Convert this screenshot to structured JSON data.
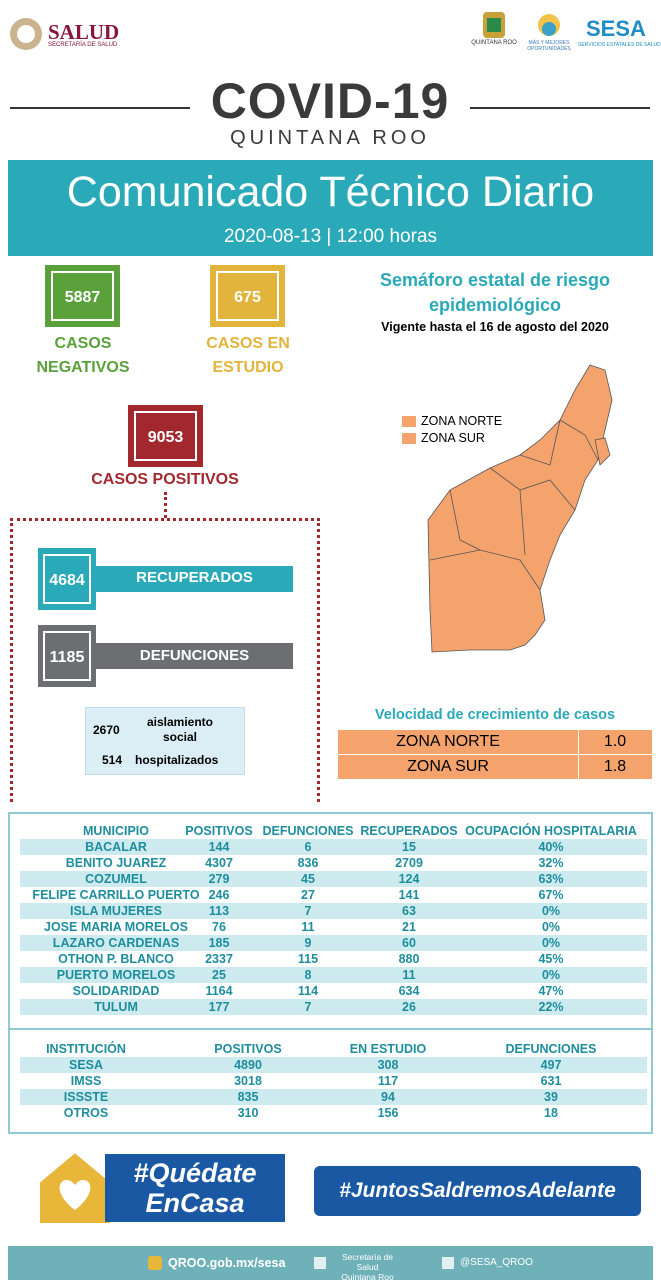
{
  "header": {
    "salud": "SALUD",
    "salud_sub": "SECRETARÍA DE SALUD",
    "qroo": "QUINTANA ROO",
    "mas": "MÁS Y MEJORES OPORTUNIDADES",
    "sesa": "SESA",
    "sesa_sub": "SERVICIOS ESTATALES DE SALUD"
  },
  "title": {
    "main": "COVID-19",
    "sub": "QUINTANA ROO"
  },
  "banner": {
    "title": "Comunicado Técnico Diario",
    "date": "2020-08-13 | 12:00 horas"
  },
  "stats": {
    "negativos": {
      "value": 5887,
      "label1": "CASOS",
      "label2": "NEGATIVOS"
    },
    "estudio": {
      "value": 675,
      "label1": "CASOS EN",
      "label2": "ESTUDIO"
    },
    "positivos": {
      "value": 9053,
      "label": "CASOS POSITIVOS"
    },
    "recuperados": {
      "value": 4684,
      "label": "RECUPERADOS"
    },
    "defunciones": {
      "value": 1185,
      "label": "DEFUNCIONES"
    },
    "aislamiento": {
      "value": 2670,
      "label1": "aislamiento",
      "label2": "social"
    },
    "hospitalizados": {
      "value": 514,
      "label": "hospitalizados"
    }
  },
  "semaforo": {
    "title1": "Semáforo estatal de riesgo",
    "title2": "epidemiológico",
    "vigente": "Vigente hasta el 16 de agosto del 2020",
    "legend": [
      "ZONA NORTE",
      "ZONA SUR"
    ]
  },
  "velocidad": {
    "title": "Velocidad de crecimiento de casos",
    "rows": [
      [
        "ZONA NORTE",
        "1.0"
      ],
      [
        "ZONA SUR",
        "1.8"
      ]
    ]
  },
  "municipios": {
    "header": [
      "MUNICIPIO",
      "POSITIVOS",
      "DEFUNCIONES",
      "RECUPERADOS",
      "OCUPACIÓN HOSPITALARIA"
    ],
    "rows": [
      [
        "BACALAR",
        144,
        6,
        15,
        "40%"
      ],
      [
        "BENITO JUAREZ",
        4307,
        836,
        2709,
        "32%"
      ],
      [
        "COZUMEL",
        279,
        45,
        124,
        "63%"
      ],
      [
        "FELIPE CARRILLO PUERTO",
        246,
        27,
        141,
        "67%"
      ],
      [
        "ISLA MUJERES",
        113,
        7,
        63,
        "0%"
      ],
      [
        "JOSE MARIA MORELOS",
        76,
        11,
        21,
        "0%"
      ],
      [
        "LAZARO CARDENAS",
        185,
        9,
        60,
        "0%"
      ],
      [
        "OTHON P. BLANCO",
        2337,
        115,
        880,
        "45%"
      ],
      [
        "PUERTO MORELOS",
        25,
        8,
        11,
        "0%"
      ],
      [
        "SOLIDARIDAD",
        1164,
        114,
        634,
        "47%"
      ],
      [
        "TULUM",
        177,
        7,
        26,
        "22%"
      ]
    ]
  },
  "instituciones": {
    "header": [
      "INSTITUCIÓN",
      "POSITIVOS",
      "EN ESTUDIO",
      "DEFUNCIONES"
    ],
    "rows": [
      [
        "SESA",
        4890,
        308,
        497
      ],
      [
        "IMSS",
        3018,
        117,
        631
      ],
      [
        "ISSSTE",
        835,
        94,
        39
      ],
      [
        "OTROS",
        310,
        156,
        18
      ]
    ]
  },
  "footer": {
    "quedate1": "#Quédate",
    "quedate2": "EnCasa",
    "juntos": "#JuntosSaldremosAdelante",
    "web": "QROO.gob.mx/sesa",
    "fb1": "Secretaría de Salud",
    "fb2": "Quintana Roo",
    "tw": "@SESA_QROO"
  }
}
